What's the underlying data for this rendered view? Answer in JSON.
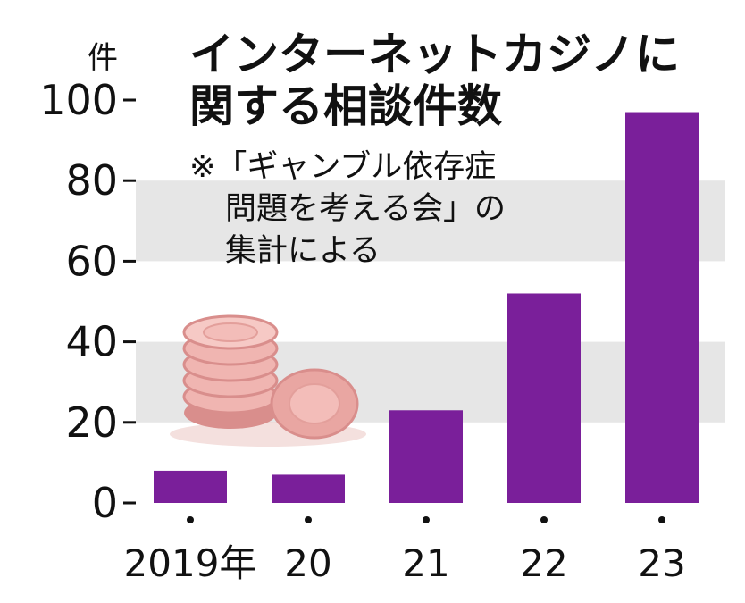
{
  "chart_data": {
    "type": "bar",
    "title_lines": [
      "インターネットカジノに",
      "関する相談件数"
    ],
    "note_lines": [
      "※「ギャンブル依存症",
      "問題を考える会」の",
      "集計による"
    ],
    "y_unit": "件",
    "categories": [
      "2019年",
      "20",
      "21",
      "22",
      "23"
    ],
    "values": [
      8,
      7,
      23,
      52,
      97
    ],
    "ylim": [
      0,
      100
    ],
    "yticks": [
      0,
      20,
      40,
      60,
      80,
      100
    ],
    "bar_color": "#7a1f9a",
    "band_color": "#e6e6e6",
    "grid": true,
    "illustration": "casino-chips"
  }
}
